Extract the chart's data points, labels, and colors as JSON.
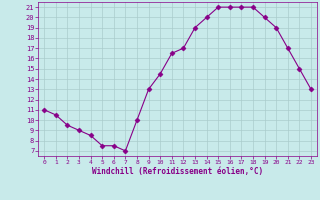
{
  "x": [
    0,
    1,
    2,
    3,
    4,
    5,
    6,
    7,
    8,
    9,
    10,
    11,
    12,
    13,
    14,
    15,
    16,
    17,
    18,
    19,
    20,
    21,
    22,
    23
  ],
  "y": [
    11,
    10.5,
    9.5,
    9,
    8.5,
    7.5,
    7.5,
    7,
    10,
    13,
    14.5,
    16.5,
    17,
    19,
    20,
    21,
    21,
    21,
    21,
    20,
    19,
    17,
    15,
    13
  ],
  "line_color": "#880088",
  "marker": "D",
  "marker_size": 2.5,
  "bg_color": "#c8eaea",
  "grid_color": "#aacccc",
  "axis_label_color": "#880088",
  "tick_color": "#880088",
  "xlabel": "Windchill (Refroidissement éolien,°C)",
  "xlim": [
    -0.5,
    23.5
  ],
  "ylim": [
    6.5,
    21.5
  ],
  "yticks": [
    7,
    8,
    9,
    10,
    11,
    12,
    13,
    14,
    15,
    16,
    17,
    18,
    19,
    20,
    21
  ],
  "xticks": [
    0,
    1,
    2,
    3,
    4,
    5,
    6,
    7,
    8,
    9,
    10,
    11,
    12,
    13,
    14,
    15,
    16,
    17,
    18,
    19,
    20,
    21,
    22,
    23
  ]
}
